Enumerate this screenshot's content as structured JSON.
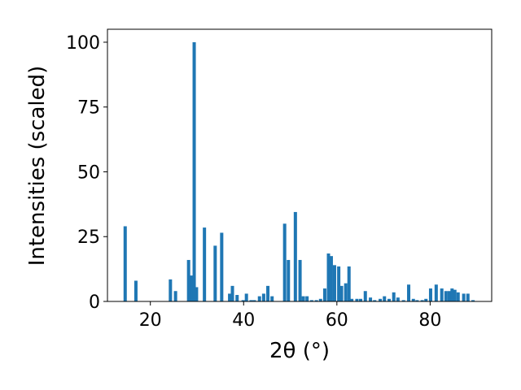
{
  "chart_data": {
    "type": "bar",
    "xlabel": "2θ (°)",
    "ylabel": "Intensities (scaled)",
    "xlim": [
      10.8,
      93.2
    ],
    "ylim": [
      0,
      105
    ],
    "xticks": [
      20,
      40,
      60,
      80
    ],
    "yticks": [
      0,
      25,
      50,
      75,
      100
    ],
    "bar_width": 0.7,
    "color": "#1f77b4",
    "x": [
      14.6,
      16.9,
      24.3,
      25.4,
      28.2,
      28.8,
      29.4,
      29.9,
      31.6,
      33.9,
      35.3,
      37.0,
      37.6,
      38.6,
      39.9,
      40.6,
      41.6,
      42.3,
      43.4,
      44.3,
      45.2,
      46.1,
      48.8,
      49.6,
      51.1,
      52.1,
      52.8,
      53.6,
      54.6,
      55.6,
      56.5,
      57.4,
      58.2,
      58.8,
      59.5,
      60.4,
      61.0,
      61.9,
      62.6,
      63.2,
      64.3,
      65.1,
      66.1,
      67.2,
      68.1,
      69.3,
      70.2,
      71.2,
      72.2,
      73.1,
      74.3,
      75.4,
      76.4,
      77.2,
      78.3,
      79.1,
      80.1,
      81.3,
      82.5,
      83.4,
      84.1,
      84.7,
      85.3,
      86.0,
      87.2,
      88.1,
      89.2
    ],
    "values": [
      29,
      8,
      8.5,
      4,
      16,
      10,
      100,
      5.5,
      28.5,
      21.5,
      26.5,
      3,
      6,
      2.5,
      0.5,
      3,
      0.5,
      0.5,
      2,
      3,
      6,
      2,
      30,
      16,
      34.5,
      16,
      2,
      2,
      0.5,
      0.5,
      1,
      5,
      18.5,
      17.5,
      14,
      13.5,
      6,
      7,
      13.5,
      1,
      1,
      1,
      4,
      1.5,
      0.5,
      1,
      2,
      1,
      3.5,
      1.5,
      0.5,
      6.5,
      1,
      0.5,
      0.5,
      1,
      5,
      6.5,
      5,
      4,
      4,
      5,
      4.5,
      3.5,
      3,
      3,
      0.5
    ]
  }
}
